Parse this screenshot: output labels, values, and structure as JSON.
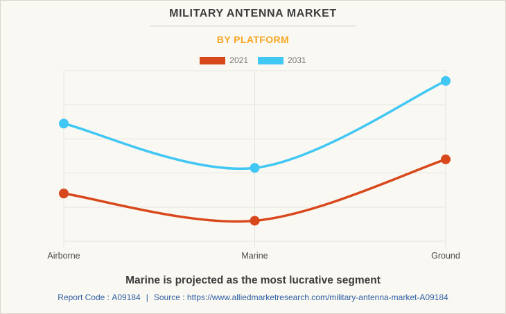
{
  "header": {
    "title": "MILITARY ANTENNA MARKET",
    "subtitle": "BY PLATFORM"
  },
  "note": "Marine is projected as the most lucrative segment",
  "footer": {
    "report_code_label": "Report Code :",
    "report_code": "A09184",
    "separator": "|",
    "source_label": "Source :",
    "source_url": "https://www.alliedmarketresearch.com/military-antenna-market-A09184"
  },
  "colors": {
    "background": "#faf8f2",
    "subtitle_accent": "#f7a521",
    "series_2021": "#d8481c",
    "series_2031": "#41c7f4",
    "footer_link": "#2e5fa3",
    "grid": "#e7e4de",
    "axis_label": "#4a4a4a"
  },
  "chart_data": {
    "type": "line",
    "line_style": "spline",
    "markers": "circle",
    "title": "MILITARY ANTENNA MARKET",
    "subtitle": "BY PLATFORM",
    "categories": [
      "Airborne",
      "Marine",
      "Ground"
    ],
    "series": [
      {
        "name": "2021",
        "color": "#d8481c",
        "values": [
          1.4,
          0.6,
          2.4
        ]
      },
      {
        "name": "2031",
        "color": "#41c7f4",
        "values": [
          3.45,
          2.15,
          4.7
        ]
      }
    ],
    "xlabel": "",
    "ylabel": "",
    "ylim": [
      0,
      5
    ],
    "y_gridline_step": 1,
    "y_axis_labels_visible": false,
    "grid": true,
    "legend_position": "top"
  }
}
